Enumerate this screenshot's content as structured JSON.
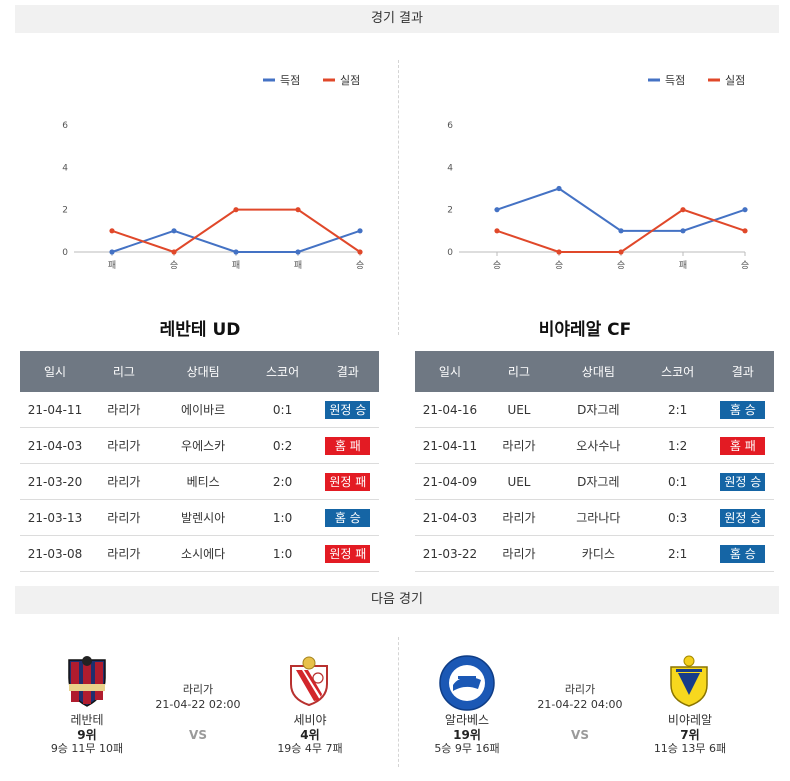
{
  "header_results": "경기 결과",
  "header_next": "다음 경기",
  "legend": {
    "scored": "득점",
    "conceded": "실점"
  },
  "colors": {
    "scored": "#4472c4",
    "conceded": "#e0482a",
    "win": "#1565a5",
    "loss": "#e31b23"
  },
  "columns": [
    "일시",
    "리그",
    "상대팀",
    "스코어",
    "결과"
  ],
  "chart_data": [
    {
      "type": "line",
      "categories": [
        "패",
        "승",
        "패",
        "패",
        "승"
      ],
      "ylim": [
        0,
        6
      ],
      "yticks": [
        "0",
        "2",
        "4",
        "6"
      ],
      "series": [
        {
          "name": "득점",
          "values": [
            0,
            1,
            0,
            0,
            1
          ]
        },
        {
          "name": "실점",
          "values": [
            1,
            0,
            2,
            2,
            0
          ]
        }
      ]
    },
    {
      "type": "line",
      "categories": [
        "승",
        "승",
        "승",
        "패",
        "승"
      ],
      "ylim": [
        0,
        6
      ],
      "yticks": [
        "0",
        "2",
        "4",
        "6"
      ],
      "series": [
        {
          "name": "득점",
          "values": [
            2,
            3,
            1,
            1,
            2
          ]
        },
        {
          "name": "실점",
          "values": [
            1,
            0,
            0,
            2,
            1
          ]
        }
      ]
    }
  ],
  "teams": [
    {
      "title": "레반테 UD",
      "rows": [
        {
          "date": "21-04-11",
          "league": "라리가",
          "opponent": "에이바르",
          "score": "0:1",
          "result": "원정 승",
          "win": true
        },
        {
          "date": "21-04-03",
          "league": "라리가",
          "opponent": "우에스카",
          "score": "0:2",
          "result": "홈 패",
          "win": false
        },
        {
          "date": "21-03-20",
          "league": "라리가",
          "opponent": "베티스",
          "score": "2:0",
          "result": "원정 패",
          "win": false
        },
        {
          "date": "21-03-13",
          "league": "라리가",
          "opponent": "발렌시아",
          "score": "1:0",
          "result": "홈 승",
          "win": true
        },
        {
          "date": "21-03-08",
          "league": "라리가",
          "opponent": "소시에다",
          "score": "1:0",
          "result": "원정 패",
          "win": false
        }
      ]
    },
    {
      "title": "비야레알 CF",
      "rows": [
        {
          "date": "21-04-16",
          "league": "UEL",
          "opponent": "D자그레",
          "score": "2:1",
          "result": "홈 승",
          "win": true
        },
        {
          "date": "21-04-11",
          "league": "라리가",
          "opponent": "오사수나",
          "score": "1:2",
          "result": "홈 패",
          "win": false
        },
        {
          "date": "21-04-09",
          "league": "UEL",
          "opponent": "D자그레",
          "score": "0:1",
          "result": "원정 승",
          "win": true
        },
        {
          "date": "21-04-03",
          "league": "라리가",
          "opponent": "그라나다",
          "score": "0:3",
          "result": "원정 승",
          "win": true
        },
        {
          "date": "21-03-22",
          "league": "라리가",
          "opponent": "카디스",
          "score": "2:1",
          "result": "홈 승",
          "win": true
        }
      ]
    }
  ],
  "next": [
    {
      "league": "라리가",
      "datetime": "21-04-22 02:00",
      "vs": "VS",
      "home": {
        "name": "레반테",
        "rank": "9위",
        "record": "9승 11무 10패"
      },
      "away": {
        "name": "세비야",
        "rank": "4위",
        "record": "19승 4무 7패"
      }
    },
    {
      "league": "라리가",
      "datetime": "21-04-22 04:00",
      "vs": "VS",
      "home": {
        "name": "알라베스",
        "rank": "19위",
        "record": "5승 9무 16패"
      },
      "away": {
        "name": "비야레알",
        "rank": "7위",
        "record": "11승 13무 6패"
      }
    }
  ]
}
